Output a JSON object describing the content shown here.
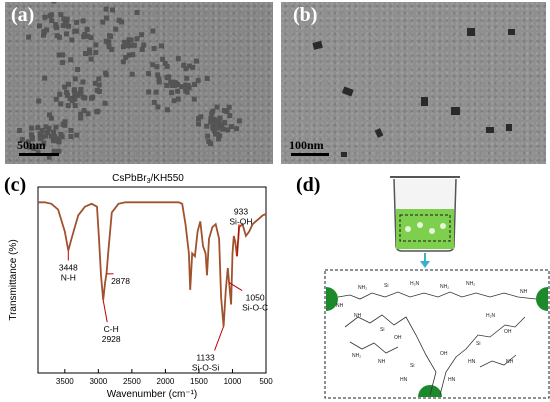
{
  "panels": {
    "a": {
      "label": "(a)",
      "scale_bar": "50nm"
    },
    "b": {
      "label": "(b)",
      "scale_bar": "100nm"
    },
    "c": {
      "label": "(c)"
    },
    "d": {
      "label": "(d)"
    }
  },
  "chart_data": {
    "type": "line",
    "title": "CsPbBr3/KH550",
    "xlabel": "Wavenumber (cm⁻¹)",
    "ylabel": "Transmittance (%)",
    "xlim": [
      3900,
      500
    ],
    "x_reversed": true,
    "xticks": [
      3500,
      3000,
      2500,
      2000,
      1500,
      1000,
      500
    ],
    "series_color": "#a0522d",
    "x": [
      3900,
      3800,
      3700,
      3600,
      3500,
      3448,
      3400,
      3300,
      3200,
      3100,
      3020,
      2990,
      2960,
      2928,
      2900,
      2878,
      2850,
      2800,
      2700,
      2600,
      2500,
      2400,
      2300,
      2200,
      2100,
      2000,
      1900,
      1800,
      1750,
      1700,
      1650,
      1630,
      1600,
      1560,
      1520,
      1480,
      1440,
      1400,
      1380,
      1350,
      1300,
      1250,
      1200,
      1170,
      1133,
      1100,
      1070,
      1050,
      1020,
      1000,
      980,
      960,
      933,
      900,
      850,
      800,
      750,
      700,
      650,
      600,
      550,
      500
    ],
    "y": [
      95,
      95,
      94,
      90,
      75,
      62,
      70,
      86,
      92,
      94,
      92,
      70,
      45,
      28,
      40,
      46,
      62,
      88,
      94,
      95,
      95,
      95,
      95,
      95,
      95,
      95,
      95,
      95,
      94,
      80,
      60,
      35,
      60,
      58,
      75,
      82,
      65,
      60,
      45,
      70,
      78,
      80,
      70,
      30,
      10,
      35,
      50,
      40,
      25,
      60,
      72,
      68,
      58,
      78,
      80,
      72,
      75,
      80,
      82,
      84,
      86,
      87
    ],
    "annotations": [
      {
        "x": 3448,
        "y": 62,
        "text": [
          "3448",
          "N-H"
        ]
      },
      {
        "x": 2878,
        "y": 46,
        "text": [
          "2878"
        ]
      },
      {
        "x": 2928,
        "y": 28,
        "text": [
          "C-H",
          "2928"
        ]
      },
      {
        "x": 1133,
        "y": 10,
        "text": [
          "1133",
          "Si-O-Si"
        ]
      },
      {
        "x": 1050,
        "y": 40,
        "text": [
          "1050",
          "Si-O-C"
        ]
      },
      {
        "x": 933,
        "y": 58,
        "text": [
          "933",
          "Si-OH"
        ]
      }
    ]
  },
  "diagram_d": {
    "labels": [
      "NH₂",
      "NH",
      "HN",
      "H₂N",
      "Si",
      "OH",
      "O"
    ]
  }
}
